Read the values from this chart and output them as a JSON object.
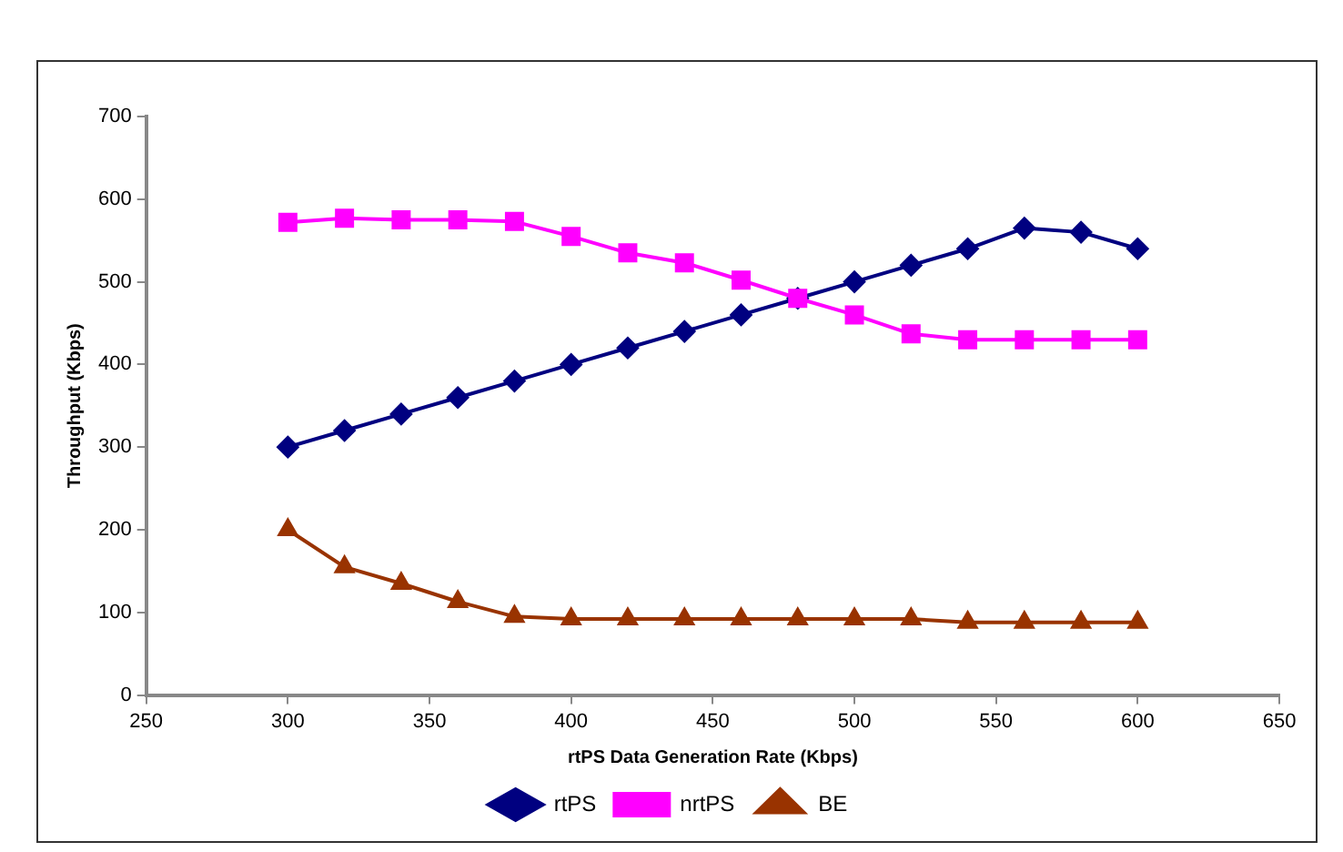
{
  "chart_data": {
    "type": "line",
    "xlabel": "rtPS Data Generation Rate (Kbps)",
    "ylabel": "Throughput (Kbps)",
    "x": [
      300,
      320,
      340,
      360,
      380,
      400,
      420,
      440,
      460,
      480,
      500,
      520,
      540,
      560,
      580,
      600
    ],
    "series": [
      {
        "name": "rtPS",
        "color": "#000080",
        "marker": "diamond",
        "values": [
          300,
          320,
          340,
          360,
          380,
          400,
          420,
          440,
          460,
          480,
          500,
          520,
          540,
          565,
          560,
          540
        ]
      },
      {
        "name": "nrtPS",
        "color": "#ff00ff",
        "marker": "square",
        "values": [
          572,
          577,
          575,
          575,
          573,
          555,
          535,
          523,
          502,
          480,
          460,
          437,
          430,
          430,
          430,
          430
        ]
      },
      {
        "name": "BE",
        "color": "#993300",
        "marker": "triangle",
        "values": [
          200,
          155,
          135,
          113,
          95,
          92,
          92,
          92,
          92,
          92,
          92,
          92,
          88,
          88,
          88,
          88
        ]
      }
    ],
    "xlim": [
      250,
      650
    ],
    "xticks": [
      250,
      300,
      350,
      400,
      450,
      500,
      550,
      600,
      650
    ],
    "ylim": [
      0,
      700
    ],
    "yticks": [
      0,
      100,
      200,
      300,
      400,
      500,
      600,
      700
    ],
    "grid": false,
    "legend": "bottom",
    "line_style": "solid"
  }
}
